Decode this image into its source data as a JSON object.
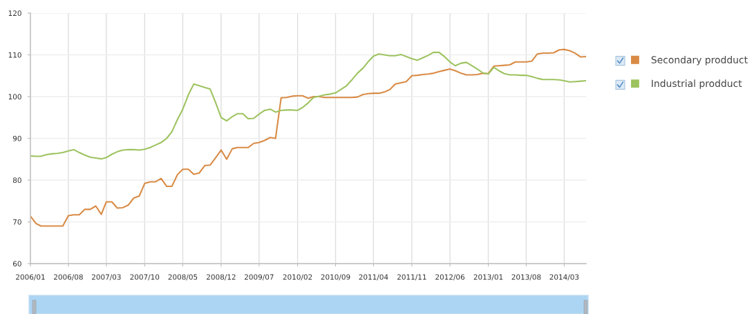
{
  "chart_data": {
    "type": "line",
    "x": [
      "2006-01",
      "2006-02",
      "2006-03",
      "2006-04",
      "2006-05",
      "2006-06",
      "2006-07",
      "2006-08",
      "2006-09",
      "2006-10",
      "2006-11",
      "2006-12",
      "2007-01",
      "2007-02",
      "2007-03",
      "2007-04",
      "2007-05",
      "2007-06",
      "2007-07",
      "2007-08",
      "2007-09",
      "2007-10",
      "2007-11",
      "2007-12",
      "2008-01",
      "2008-02",
      "2008-03",
      "2008-04",
      "2008-05",
      "2008-06",
      "2008-07",
      "2008-08",
      "2008-09",
      "2008-10",
      "2008-11",
      "2008-12",
      "2009-01",
      "2009-02",
      "2009-03",
      "2009-04",
      "2009-05",
      "2009-06",
      "2009-07",
      "2009-08",
      "2009-09",
      "2009-10",
      "2009-11",
      "2009-12",
      "2010-01",
      "2010-02",
      "2010-03",
      "2010-04",
      "2010-05",
      "2010-06",
      "2010-07",
      "2010-08",
      "2010-09",
      "2010-10",
      "2010-11",
      "2010-12",
      "2011-01",
      "2011-02",
      "2011-03",
      "2011-04",
      "2011-05",
      "2011-06",
      "2011-07",
      "2011-08",
      "2011-09",
      "2011-10",
      "2011-11",
      "2011-12",
      "2012-01",
      "2012-02",
      "2012-03",
      "2012-04",
      "2012-05",
      "2012-06",
      "2012-07",
      "2012-08",
      "2012-09",
      "2012-10",
      "2012-11",
      "2012-12",
      "2013-01",
      "2013-02",
      "2013-03",
      "2013-04",
      "2013-05",
      "2013-06",
      "2013-07",
      "2013-08",
      "2013-09",
      "2013-10",
      "2013-11",
      "2013-12",
      "2014-01",
      "2014-02",
      "2014-03",
      "2014-04",
      "2014-05",
      "2014-06",
      "2014-07"
    ],
    "series": [
      {
        "name": "Secondary prodduct",
        "color": "#d98b45",
        "values": [
          71.4,
          69.6,
          69,
          69,
          69,
          69,
          69,
          71.5,
          71.7,
          71.7,
          73,
          73,
          73.8,
          71.8,
          74.8,
          74.8,
          73.3,
          73.4,
          74,
          75.7,
          76.2,
          79.2,
          79.6,
          79.6,
          80.4,
          78.5,
          78.5,
          81.3,
          82.6,
          82.6,
          81.4,
          81.7,
          83.5,
          83.6,
          85.4,
          87.2,
          85,
          87.5,
          87.8,
          87.8,
          87.8,
          88.8,
          89,
          89.5,
          90.2,
          90,
          99.7,
          99.8,
          100.1,
          100.2,
          100.2,
          99.6,
          100,
          100,
          99.8,
          99.8,
          99.8,
          99.8,
          99.8,
          99.8,
          99.9,
          100.5,
          100.7,
          100.8,
          100.8,
          101.1,
          101.7,
          103,
          103.3,
          103.6,
          105,
          105.1,
          105.3,
          105.4,
          105.6,
          106,
          106.3,
          106.6,
          106.2,
          105.6,
          105.2,
          105.2,
          105.3,
          105.6,
          105.5,
          107.3,
          107.4,
          107.5,
          107.6,
          108.3,
          108.3,
          108.3,
          108.5,
          110.2,
          110.4,
          110.4,
          110.5,
          111.2,
          111.3,
          111,
          110.4,
          109.5,
          109.6
        ]
      },
      {
        "name": "Industrial prodduct",
        "color": "#9dc35f",
        "values": [
          85.8,
          85.7,
          85.7,
          86.1,
          86.3,
          86.4,
          86.6,
          87,
          87.3,
          86.6,
          86,
          85.5,
          85.3,
          85.1,
          85.4,
          86.2,
          86.8,
          87.2,
          87.3,
          87.3,
          87.2,
          87.4,
          87.8,
          88.4,
          89,
          90,
          91.6,
          94.5,
          97,
          100.4,
          103,
          102.6,
          102.2,
          101.8,
          98.5,
          95,
          94.2,
          95.2,
          95.9,
          95.9,
          94.7,
          94.8,
          95.8,
          96.7,
          97,
          96.3,
          96.7,
          96.8,
          96.8,
          96.7,
          97.4,
          98.5,
          99.8,
          100.1,
          100.4,
          100.6,
          100.9,
          101.7,
          102.6,
          104,
          105.6,
          106.8,
          108.3,
          109.7,
          110.2,
          110,
          109.8,
          109.8,
          110.1,
          109.6,
          109.1,
          108.7,
          109.3,
          109.9,
          110.6,
          110.6,
          109.6,
          108.3,
          107.4,
          108,
          108.2,
          107.4,
          106.6,
          105.7,
          105.4,
          107,
          106.2,
          105.5,
          105.2,
          105.2,
          105.1,
          105.1,
          104.8,
          104.4,
          104.1,
          104.1,
          104.1,
          104,
          103.8,
          103.5,
          103.6,
          103.7,
          103.8
        ]
      }
    ],
    "xlim": [
      "2006-01",
      "2014-07"
    ],
    "xticks": [
      {
        "value": "2006-01",
        "label": "2006/01"
      },
      {
        "value": "2006-08",
        "label": "2006/08"
      },
      {
        "value": "2007-03",
        "label": "2007/03"
      },
      {
        "value": "2007-10",
        "label": "2007/10"
      },
      {
        "value": "2008-05",
        "label": "2008/05"
      },
      {
        "value": "2008-12",
        "label": "2008/12"
      },
      {
        "value": "2009-07",
        "label": "2009/07"
      },
      {
        "value": "2010-02",
        "label": "2010/02"
      },
      {
        "value": "2010-09",
        "label": "2010/09"
      },
      {
        "value": "2011-04",
        "label": "2011/04"
      },
      {
        "value": "2011-11",
        "label": "2011/11"
      },
      {
        "value": "2012-06",
        "label": "2012/06"
      },
      {
        "value": "2013-01",
        "label": "2013/01"
      },
      {
        "value": "2013-08",
        "label": "2013/08"
      },
      {
        "value": "2014-03",
        "label": "2014/03"
      }
    ],
    "ylim": [
      60,
      120
    ],
    "yticks": [
      60,
      70,
      80,
      90,
      100,
      110,
      120
    ],
    "grid": true,
    "legend": "top right"
  }
}
